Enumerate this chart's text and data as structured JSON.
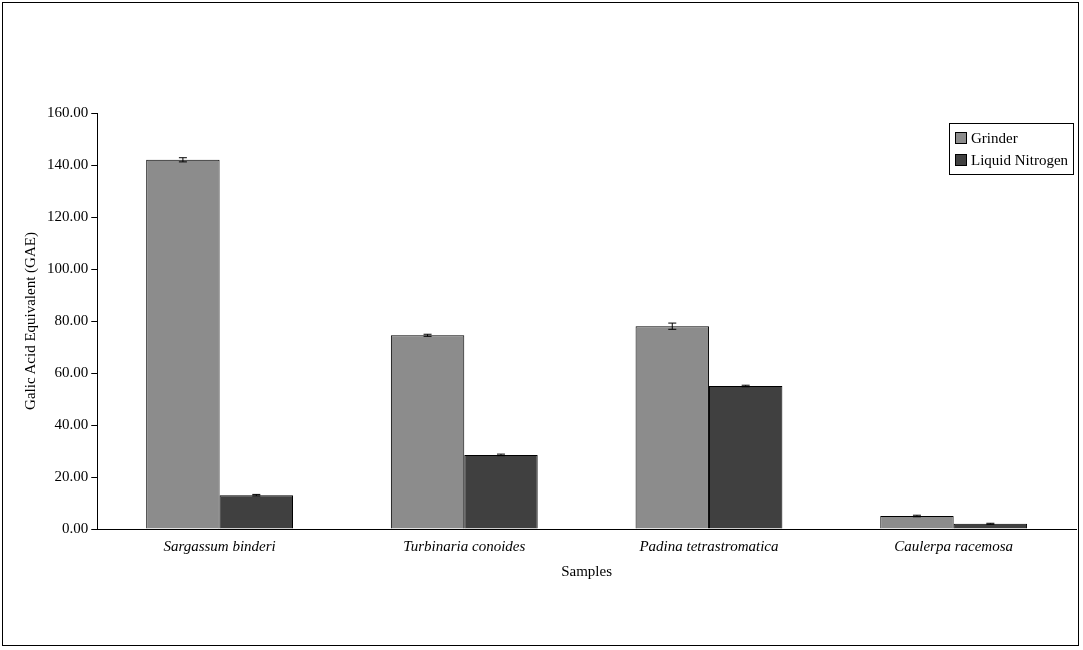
{
  "chart_data": {
    "type": "bar",
    "xlabel": "Samples",
    "ylabel": "Galic Acid Equivalent (GAE)",
    "categories": [
      "Sargassum binderi",
      "Turbinaria conoides",
      "Padina tetrastromatica",
      "Caulerpa racemosa"
    ],
    "series": [
      {
        "name": "Grinder",
        "color": "#8c8c8c",
        "values": [
          142,
          74.5,
          78,
          5
        ],
        "errors": [
          0.8,
          0.4,
          1.2,
          0.3
        ]
      },
      {
        "name": "Liquid Nitrogen",
        "color": "#404040",
        "values": [
          13,
          28.5,
          55,
          2
        ],
        "errors": [
          0.3,
          0.3,
          0.3,
          0.2
        ]
      }
    ],
    "ylim": [
      0,
      160
    ],
    "yticks": [
      {
        "value": 0,
        "label": "0.00"
      },
      {
        "value": 20,
        "label": "20.00"
      },
      {
        "value": 40,
        "label": "40.00"
      },
      {
        "value": 60,
        "label": "60.00"
      },
      {
        "value": 80,
        "label": "80.00"
      },
      {
        "value": 100,
        "label": "100.00"
      },
      {
        "value": 120,
        "label": "120.00"
      },
      {
        "value": 140,
        "label": "140.00"
      },
      {
        "value": 160,
        "label": "160.00"
      }
    ],
    "grid": false,
    "legend": "top right"
  }
}
